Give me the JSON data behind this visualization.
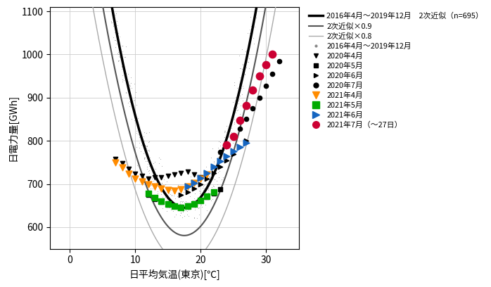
{
  "xlabel": "日平均気温(東京)[℃]",
  "ylabel": "日電力量[GWh]",
  "xlim": [
    -3,
    35
  ],
  "ylim": [
    550,
    1110
  ],
  "yticks": [
    600,
    700,
    800,
    900,
    1000,
    1100
  ],
  "xticks": [
    0,
    10,
    20,
    30
  ],
  "background_color": "#ffffff",
  "poly_a": 3.8,
  "poly_vertex_x": 17.5,
  "poly_vertex_y": 645,
  "curve_black_lw": 2.5,
  "curve_gray_color": "#555555",
  "curve_gray_lw": 1.5,
  "curve_lightgray_color": "#aaaaaa",
  "curve_lightgray_lw": 1.0,
  "scatter_bg_color": "#888888",
  "t_apr20": [
    7,
    8,
    9,
    10,
    11,
    12,
    13,
    14,
    15,
    16,
    17,
    18,
    19,
    20
  ],
  "p_apr20": [
    758,
    748,
    735,
    724,
    718,
    713,
    715,
    716,
    718,
    722,
    726,
    728,
    722,
    715
  ],
  "t_may20": [
    12,
    13,
    14,
    15,
    16,
    17,
    18,
    19,
    20,
    21,
    22,
    23
  ],
  "p_may20": [
    675,
    665,
    658,
    652,
    648,
    647,
    650,
    655,
    662,
    670,
    678,
    688
  ],
  "t_jun20": [
    17,
    18,
    19,
    20,
    21,
    22,
    23,
    24,
    25,
    26,
    27
  ],
  "p_jun20": [
    675,
    682,
    690,
    700,
    712,
    725,
    740,
    755,
    770,
    785,
    800
  ],
  "t_jul20": [
    23,
    24,
    25,
    26,
    27,
    28,
    29,
    30,
    31,
    32
  ],
  "p_jul20": [
    775,
    790,
    808,
    828,
    850,
    875,
    900,
    928,
    955,
    985
  ],
  "t_apr21": [
    7,
    8,
    9,
    10,
    11,
    12,
    13,
    14,
    15,
    16,
    17,
    18,
    19,
    20,
    21
  ],
  "p_apr21": [
    750,
    738,
    724,
    712,
    705,
    700,
    695,
    690,
    686,
    685,
    688,
    695,
    703,
    713,
    722
  ],
  "t_may21": [
    12,
    13,
    14,
    15,
    16,
    17,
    18,
    19,
    20,
    21,
    22
  ],
  "p_may21": [
    678,
    668,
    660,
    653,
    648,
    646,
    648,
    654,
    662,
    672,
    682
  ],
  "t_jun21": [
    18,
    19,
    20,
    21,
    22,
    23,
    24,
    25,
    26,
    27
  ],
  "p_jun21": [
    695,
    703,
    714,
    726,
    740,
    753,
    765,
    776,
    786,
    796
  ],
  "t_jul21": [
    24,
    25,
    26,
    27,
    28,
    29,
    30,
    31
  ],
  "p_jul21": [
    790,
    810,
    848,
    882,
    918,
    950,
    976,
    1000
  ],
  "legend_labels": [
    "2016年4月～2019年12月　2次近似（n=695）",
    "2次近似×0.9",
    "2次近似×0.8",
    "2016年4月～2019年12月",
    "2020年4月",
    "2020年5月",
    "2020年6月",
    "2020年7月",
    "2021年4月",
    "2021年5月",
    "2021年6月",
    "2021年7月（～27日）"
  ],
  "color_apr21": "#ff8c00",
  "color_may21": "#00aa00",
  "color_jun21": "#1565c0",
  "color_jul21": "#cc0033"
}
